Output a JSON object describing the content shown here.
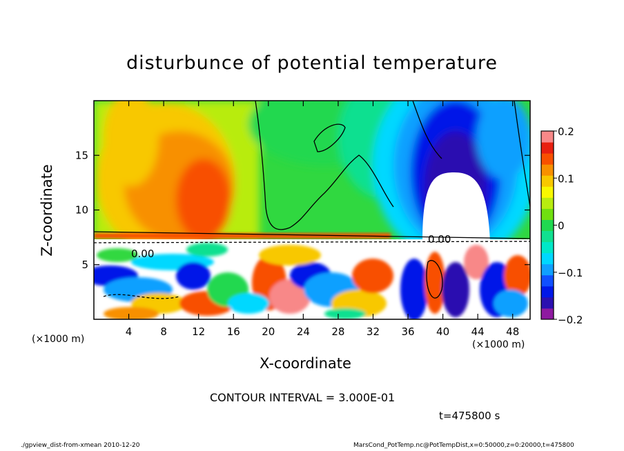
{
  "title": "disturbunce of potential temperature",
  "footer": {
    "left": "./gpview_dist-from-xmean  2010-12-20",
    "right": "MarsCond_PotTemp.nc@PotTempDist,x=0:50000,z=0:20000,t=475800"
  },
  "contour_interval_text": "CONTOUR INTERVAL = 3.000E-01",
  "time_text": "t=475800 s",
  "contour_label": "0.00",
  "chart_data": {
    "type": "heatmap",
    "title": "disturbunce of potential temperature",
    "xlabel": "X-coordinate",
    "ylabel": "Z-coordinate",
    "x_unit": "(×1000 m)",
    "x_ticks": [
      4,
      8,
      12,
      16,
      20,
      24,
      28,
      32,
      36,
      40,
      44,
      48
    ],
    "y_ticks": [
      5,
      10,
      15
    ],
    "xlim": [
      0,
      50
    ],
    "ylim": [
      0,
      20
    ],
    "colorbar": {
      "ticks": [
        "0.2",
        "0.1",
        "0",
        "−0.1",
        "−0.2"
      ],
      "tick_values": [
        0.2,
        0.1,
        0,
        -0.1,
        -0.2
      ],
      "range": [
        -0.2,
        0.2
      ],
      "colors": [
        "#8e1aa0",
        "#2b10b0",
        "#0018e8",
        "#1050ff",
        "#10a0ff",
        "#00d8ff",
        "#00e8c8",
        "#10e090",
        "#20d850",
        "#70e010",
        "#b8ec10",
        "#f8f800",
        "#f8c800",
        "#f89000",
        "#f85000",
        "#e82010",
        "#f88888"
      ]
    }
  }
}
